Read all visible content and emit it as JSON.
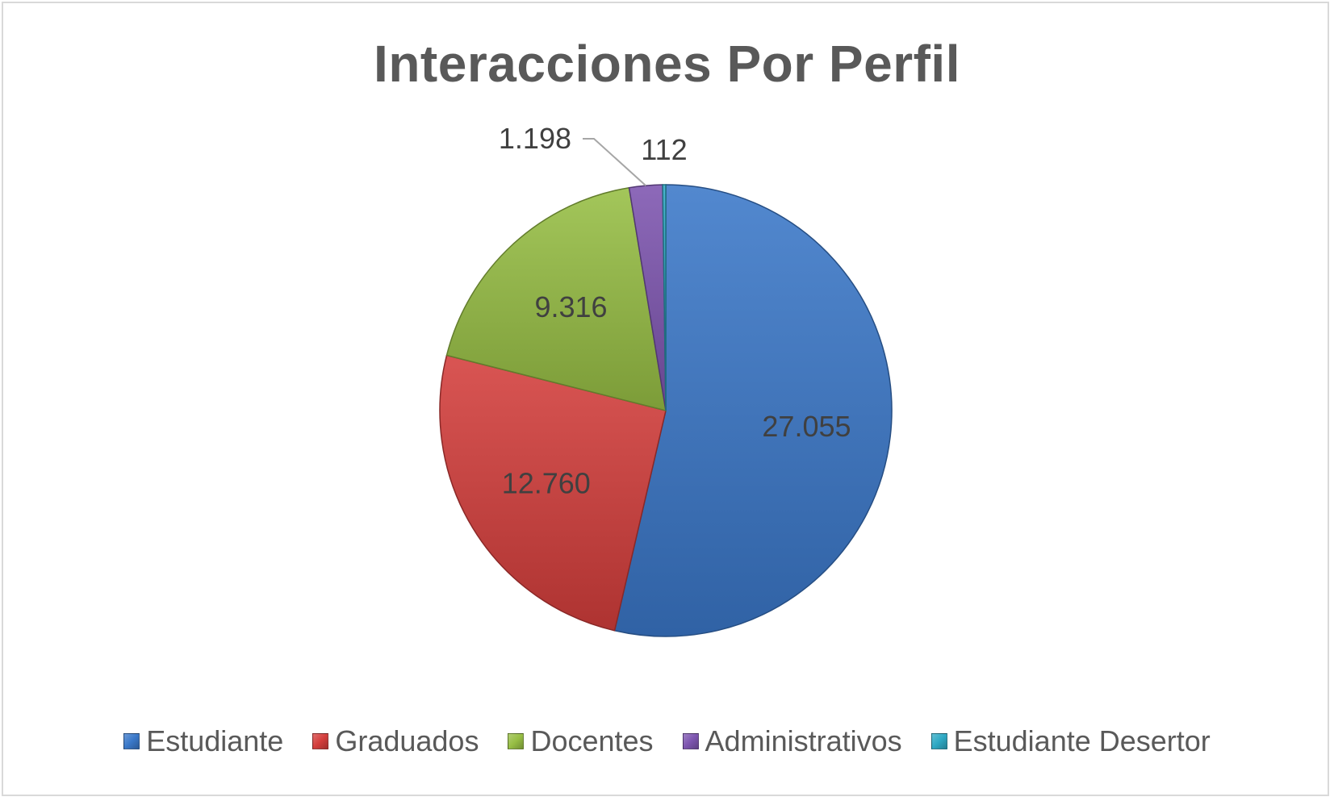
{
  "chart_data": {
    "type": "pie",
    "title": "Interacciones Por Perfil",
    "legend_position": "bottom",
    "categories": [
      "Estudiante",
      "Graduados",
      "Docentes",
      "Administrativos",
      "Estudiante Desertor"
    ],
    "values": [
      27055,
      12760,
      9316,
      1198,
      112
    ],
    "value_labels": [
      "27.055",
      "12.760",
      "9.316",
      "1.198",
      "112"
    ],
    "colors": [
      "#3A78C9",
      "#D43E3C",
      "#97BE44",
      "#7D55B0",
      "#2EA9C4"
    ]
  }
}
